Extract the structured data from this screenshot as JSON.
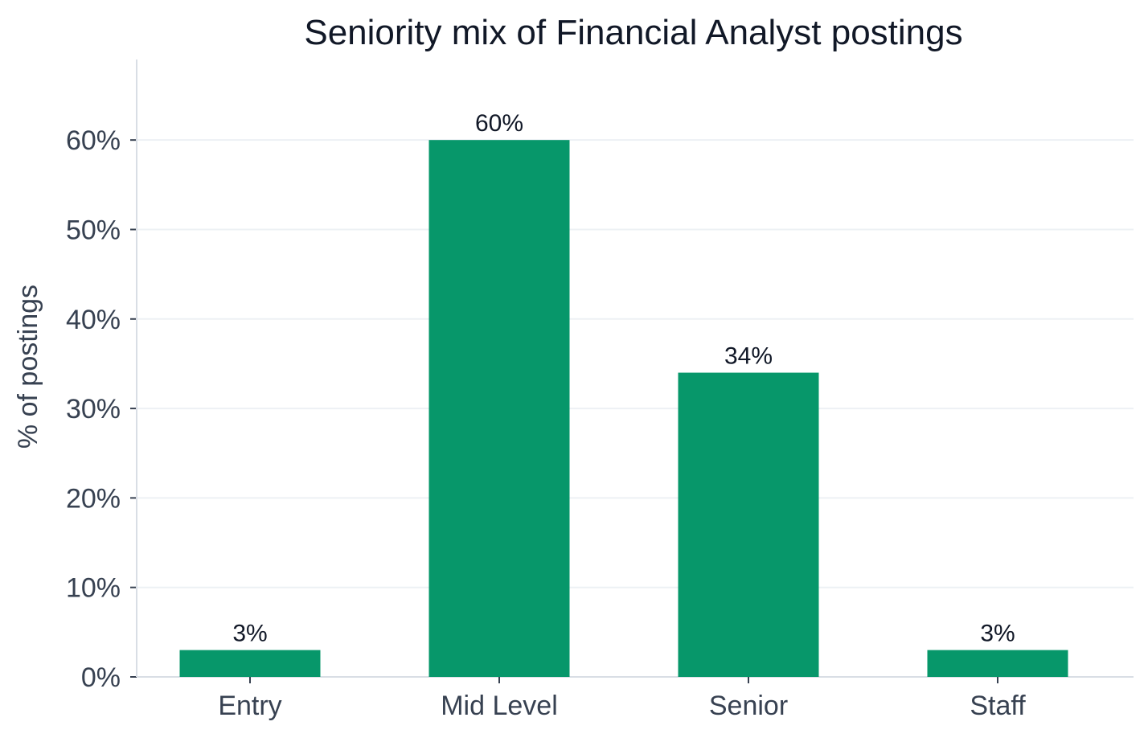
{
  "chart_data": {
    "type": "bar",
    "title": "Seniority mix of Financial Analyst postings",
    "xlabel": "",
    "ylabel": "% of postings",
    "categories": [
      "Entry",
      "Mid Level",
      "Senior",
      "Staff"
    ],
    "values": [
      3,
      60,
      34,
      3
    ],
    "value_labels": [
      "3%",
      "60%",
      "34%",
      "3%"
    ],
    "y_ticks": [
      0,
      10,
      20,
      30,
      40,
      50,
      60
    ],
    "y_tick_labels": [
      "0%",
      "10%",
      "20%",
      "30%",
      "40%",
      "50%",
      "60%"
    ],
    "ylim": [
      0,
      69
    ],
    "grid": "horizontal",
    "colors": {
      "bar": "#07976a",
      "grid": "#edf1f4",
      "axis": "#d9dee5",
      "text_dark": "#111827",
      "text_axis": "#374151"
    }
  }
}
